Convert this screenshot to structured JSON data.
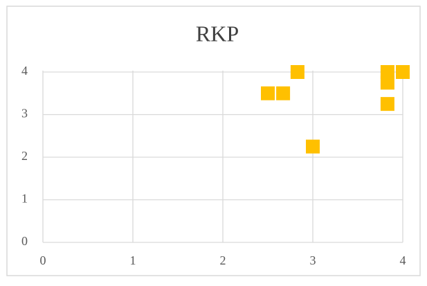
{
  "chart_data": {
    "type": "scatter",
    "title": "RKP",
    "series": [
      {
        "name": null,
        "color": "#FFC000",
        "x": [
          2.5,
          2.67,
          2.83,
          3,
          3.83,
          3.83,
          3.83,
          4
        ],
        "values": [
          3.5,
          3.5,
          4,
          2.25,
          4,
          3.75,
          3.25,
          4
        ]
      }
    ],
    "xlim": [
      0,
      4
    ],
    "xticks": [
      0,
      1,
      2,
      3,
      4
    ],
    "ylim": [
      0,
      4
    ],
    "yticks": [
      0,
      1,
      2,
      3,
      4
    ],
    "grid": true
  }
}
